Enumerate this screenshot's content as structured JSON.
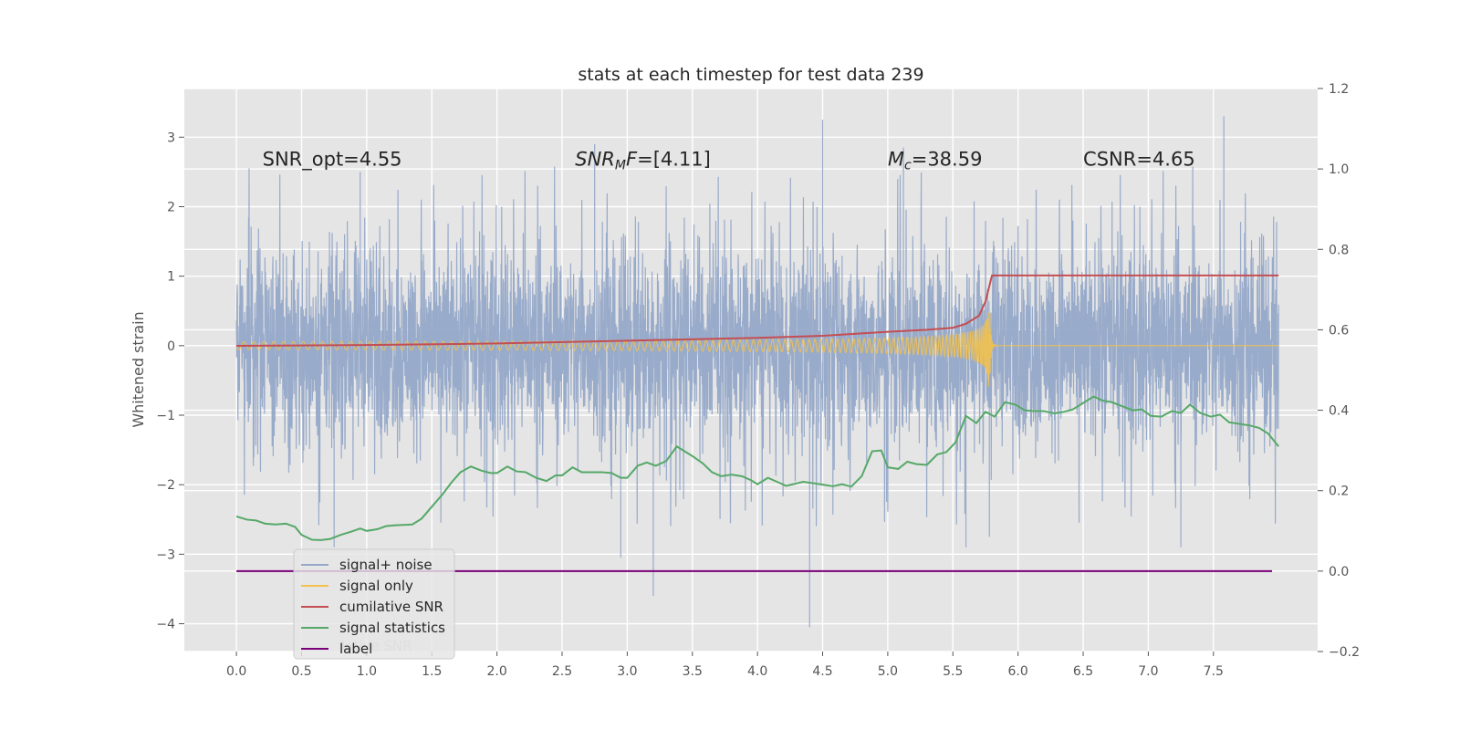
{
  "chart_data": {
    "type": "line",
    "title": "stats at each timestep for test data 239",
    "ylabel": "Whitened strain",
    "xlabel": "",
    "xlim": [
      -0.4,
      8.3
    ],
    "ylim": [
      -4.4,
      3.7
    ],
    "y2lim": [
      -0.2,
      1.2
    ],
    "grid": true,
    "x_ticks": [
      "0.0",
      "0.5",
      "1.0",
      "1.5",
      "2.0",
      "2.5",
      "3.0",
      "3.5",
      "4.0",
      "4.5",
      "5.0",
      "5.5",
      "6.0",
      "6.5",
      "7.0",
      "7.5"
    ],
    "y_ticks": [
      "3",
      "2",
      "1",
      "0",
      "−1",
      "−2",
      "−3",
      "−4"
    ],
    "y2_ticks": [
      "1.2",
      "1.0",
      "0.8",
      "0.6",
      "0.4",
      "0.2",
      "0.0",
      "−0.2"
    ],
    "annotations": [
      {
        "id": "snr-opt",
        "text": "SNR_opt=4.55",
        "x": 0.2,
        "y": 2.55
      },
      {
        "id": "snr-mf",
        "text": "SNR_MF=[4.11]",
        "x": 2.6,
        "y": 2.55
      },
      {
        "id": "mc",
        "text": "M_c=38.59",
        "x": 5.0,
        "y": 2.55
      },
      {
        "id": "csnr",
        "text": "CSNR=4.65",
        "x": 6.5,
        "y": 2.55
      }
    ],
    "legend": {
      "placement": "lower-left",
      "entries": [
        {
          "label": "signal+ noise",
          "color": "#95a8c8"
        },
        {
          "label": "signal only",
          "color": "#f2c14e"
        },
        {
          "label": "cumilative SNR",
          "color": "#c44e52"
        },
        {
          "label": "signal statistics",
          "color": "#55a868"
        },
        {
          "label": "label",
          "color": "#7b007b"
        }
      ],
      "hidden_text": "lative SNR"
    },
    "series": [
      {
        "name": "signal+ noise",
        "axis": "left",
        "color": "#95a8c8",
        "style": "dense-noise",
        "x_range": [
          0.0,
          8.0
        ],
        "typical_range": [
          -1.4,
          1.8
        ],
        "spikes": [
          {
            "x": 3.2,
            "y": -3.6
          },
          {
            "x": 4.4,
            "y": -4.05
          },
          {
            "x": 4.5,
            "y": 3.25
          },
          {
            "x": 7.58,
            "y": 3.3
          },
          {
            "x": 2.95,
            "y": -3.05
          },
          {
            "x": 0.75,
            "y": -2.9
          },
          {
            "x": 5.12,
            "y": 2.85
          },
          {
            "x": 5.6,
            "y": -2.9
          },
          {
            "x": 7.25,
            "y": -2.9
          },
          {
            "x": 5.78,
            "y": -2.75
          },
          {
            "x": 0.95,
            "y": 2.5
          },
          {
            "x": 2.75,
            "y": 2.9
          }
        ]
      },
      {
        "name": "signal only",
        "axis": "left",
        "color": "#f2c14e",
        "style": "chirp",
        "x_range": [
          0.0,
          8.0
        ],
        "merger_x": 5.78,
        "peak_amplitude": 0.72
      },
      {
        "name": "cumilative SNR",
        "axis": "right",
        "color": "#c44e52",
        "x": [
          0.0,
          1.0,
          2.0,
          3.0,
          4.0,
          4.5,
          5.0,
          5.3,
          5.5,
          5.6,
          5.7,
          5.75,
          5.8,
          6.0,
          7.0,
          8.0
        ],
        "y": [
          0.56,
          0.562,
          0.566,
          0.573,
          0.58,
          0.585,
          0.595,
          0.6,
          0.605,
          0.615,
          0.635,
          0.67,
          0.735,
          0.735,
          0.735,
          0.735
        ]
      },
      {
        "name": "signal statistics",
        "axis": "right",
        "color": "#55a868",
        "x": [
          0.0,
          0.08,
          0.15,
          0.22,
          0.3,
          0.38,
          0.45,
          0.5,
          0.58,
          0.65,
          0.72,
          0.8,
          0.88,
          0.95,
          1.0,
          1.08,
          1.15,
          1.22,
          1.3,
          1.35,
          1.42,
          1.5,
          1.58,
          1.65,
          1.72,
          1.8,
          1.88,
          1.95,
          2.0,
          2.08,
          2.15,
          2.22,
          2.3,
          2.38,
          2.45,
          2.5,
          2.58,
          2.65,
          2.72,
          2.8,
          2.88,
          2.95,
          3.0,
          3.08,
          3.15,
          3.22,
          3.3,
          3.38,
          3.45,
          3.5,
          3.58,
          3.65,
          3.72,
          3.8,
          3.88,
          3.95,
          4.0,
          4.08,
          4.15,
          4.22,
          4.3,
          4.35,
          4.42,
          4.5,
          4.58,
          4.65,
          4.72,
          4.8,
          4.88,
          4.95,
          5.0,
          5.08,
          5.15,
          5.22,
          5.3,
          5.38,
          5.45,
          5.52,
          5.6,
          5.68,
          5.75,
          5.82,
          5.9,
          5.98,
          6.05,
          6.12,
          6.2,
          6.28,
          6.35,
          6.42,
          6.5,
          6.58,
          6.65,
          6.72,
          6.8,
          6.88,
          6.95,
          7.02,
          7.1,
          7.18,
          7.25,
          7.32,
          7.4,
          7.48,
          7.55,
          7.62,
          7.7,
          7.78,
          7.85,
          7.92,
          8.0
        ],
        "y": [
          0.136,
          0.128,
          0.126,
          0.118,
          0.116,
          0.118,
          0.11,
          0.09,
          0.078,
          0.077,
          0.08,
          0.09,
          0.098,
          0.106,
          0.1,
          0.104,
          0.112,
          0.114,
          0.115,
          0.116,
          0.13,
          0.16,
          0.19,
          0.22,
          0.246,
          0.26,
          0.25,
          0.244,
          0.244,
          0.26,
          0.248,
          0.246,
          0.232,
          0.224,
          0.238,
          0.238,
          0.258,
          0.246,
          0.246,
          0.246,
          0.244,
          0.232,
          0.232,
          0.262,
          0.27,
          0.262,
          0.274,
          0.31,
          0.296,
          0.286,
          0.268,
          0.246,
          0.236,
          0.24,
          0.236,
          0.226,
          0.216,
          0.232,
          0.222,
          0.212,
          0.218,
          0.222,
          0.219,
          0.215,
          0.211,
          0.216,
          0.21,
          0.236,
          0.298,
          0.3,
          0.258,
          0.254,
          0.272,
          0.266,
          0.264,
          0.29,
          0.296,
          0.32,
          0.386,
          0.368,
          0.396,
          0.384,
          0.42,
          0.414,
          0.4,
          0.398,
          0.398,
          0.392,
          0.396,
          0.402,
          0.418,
          0.434,
          0.424,
          0.42,
          0.41,
          0.4,
          0.402,
          0.386,
          0.384,
          0.398,
          0.393,
          0.414,
          0.393,
          0.384,
          0.389,
          0.37,
          0.366,
          0.362,
          0.356,
          0.342,
          0.31
        ]
      },
      {
        "name": "label",
        "axis": "right",
        "color": "#7b007b",
        "x": [
          0.0,
          7.95
        ],
        "y": [
          0.0,
          0.0
        ]
      }
    ]
  }
}
